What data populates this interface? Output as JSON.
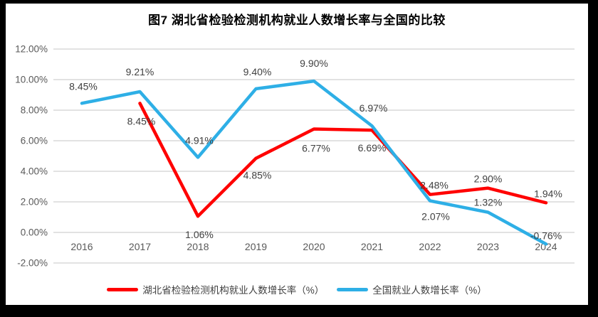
{
  "title": "图7 湖北省检验检测机构就业人数增长率与全国的比较",
  "colors": {
    "hubei_series": "#FF0000",
    "national_series": "#2EAFE6",
    "gridline": "#D9D9D9",
    "axis_text": "#595959",
    "data_label_text": "#404040",
    "frame_border": "#000000",
    "background": "#FFFFFF"
  },
  "chart_data": {
    "type": "line",
    "categories": [
      "2016",
      "2017",
      "2018",
      "2019",
      "2020",
      "2021",
      "2022",
      "2023",
      "2024"
    ],
    "ylim": [
      -2,
      12
    ],
    "ytick_step": 2,
    "yticks": [
      {
        "value": 12,
        "label": "12.00%"
      },
      {
        "value": 10,
        "label": "10.00%"
      },
      {
        "value": 8,
        "label": "8.00%"
      },
      {
        "value": 6,
        "label": "6.00%"
      },
      {
        "value": 4,
        "label": "4.00%"
      },
      {
        "value": 2,
        "label": "2.00%"
      },
      {
        "value": 0,
        "label": "0.00%"
      },
      {
        "value": -2,
        "label": "-2.00%"
      }
    ],
    "grid": true,
    "legend_position": "bottom",
    "series": [
      {
        "name": "湖北省检验检测机构就业人数增长率（%）",
        "color": "#FF0000",
        "values": [
          null,
          8.45,
          1.06,
          4.85,
          6.77,
          6.69,
          2.48,
          2.9,
          1.94
        ],
        "labels": [
          null,
          "8.45%",
          "1.06%",
          "4.85%",
          "6.77%",
          "6.69%",
          "2.48%",
          "2.90%",
          "1.94%"
        ],
        "label_dx": [
          0,
          2,
          2,
          2,
          3,
          0,
          6,
          0,
          3
        ],
        "label_dy": [
          0,
          25,
          26,
          24,
          27,
          25,
          -13,
          -13,
          -13
        ]
      },
      {
        "name": "全国就业人数增长率（%）",
        "color": "#2EAFE6",
        "values": [
          8.45,
          9.21,
          4.91,
          9.4,
          9.9,
          6.97,
          2.07,
          1.32,
          -0.76
        ],
        "labels": [
          "8.45%",
          "9.21%",
          "4.91%",
          "9.40%",
          "9.90%",
          "6.97%",
          "2.07%",
          "1.32%",
          "-0.76%"
        ],
        "label_dx": [
          2,
          0,
          2,
          2,
          0,
          2,
          8,
          0,
          0
        ],
        "label_dy": [
          -24,
          -28,
          -24,
          -24,
          -25,
          -25,
          22,
          -14,
          -12
        ]
      }
    ]
  }
}
